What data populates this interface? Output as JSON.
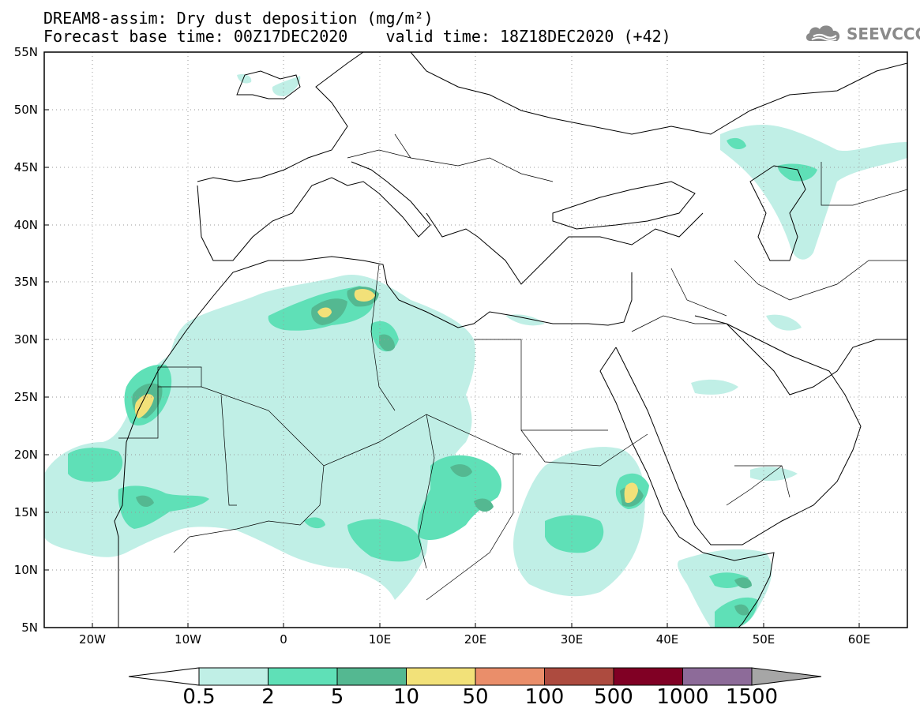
{
  "title": {
    "line1": "DREAM8-assim: Dry dust deposition (mg/m²)",
    "line2": "Forecast base time: 00Z17DEC2020    valid time: 18Z18DEC2020 (+42)"
  },
  "logo": {
    "text": "SEEVCCC",
    "icon": "cloud-icon"
  },
  "map": {
    "lon_range": [
      -25,
      65
    ],
    "lat_range": [
      5,
      55
    ],
    "lat_ticks": [
      "55N",
      "50N",
      "45N",
      "40N",
      "35N",
      "30N",
      "25N",
      "20N",
      "15N",
      "10N",
      "5N"
    ],
    "lon_ticks": [
      "20W",
      "10W",
      "0",
      "10E",
      "20E",
      "30E",
      "40E",
      "50E",
      "60E"
    ],
    "grid": "dotted",
    "colors": {
      "frame": "#000000",
      "coast": "#000000",
      "grid": "#999999"
    }
  },
  "legend": {
    "labels": [
      "0.5",
      "2",
      "5",
      "10",
      "50",
      "100",
      "500",
      "1000",
      "1500"
    ],
    "colors": [
      "#c0efe6",
      "#5fe0b7",
      "#54b891",
      "#f2e179",
      "#ea8e6a",
      "#ad4b3f",
      "#800024",
      "#8d6b99"
    ],
    "over_color": "#a6a6a6",
    "under_color": "#ffffff"
  }
}
